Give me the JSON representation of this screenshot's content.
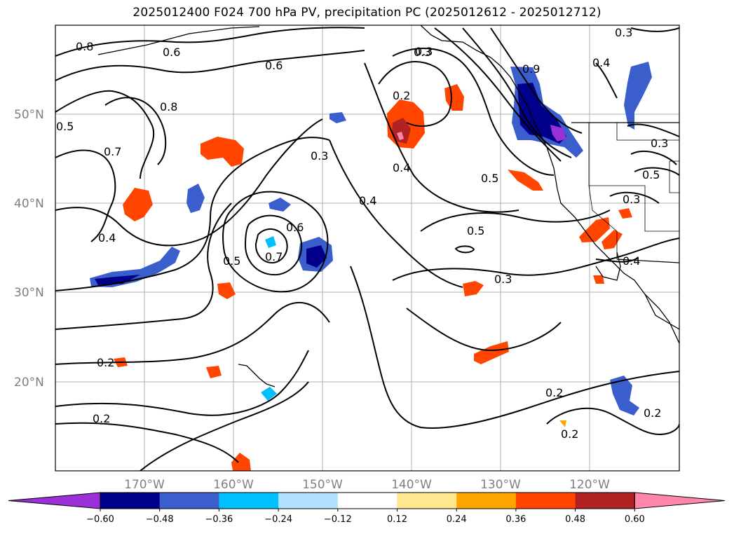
{
  "title": "2025012400 F024 700 hPa PV, precipitation PC (2025012612 - 2025012712)",
  "map": {
    "lon_range": [
      -180,
      -110
    ],
    "lat_range": [
      10,
      60
    ],
    "lon_ticks": [
      "170°W",
      "160°W",
      "150°W",
      "140°W",
      "130°W",
      "120°W"
    ],
    "lat_ticks": [
      "50°N",
      "40°N",
      "30°N",
      "20°N"
    ],
    "grid": true,
    "contour_labels": [
      "0.8",
      "0.6",
      "0.5",
      "0.6",
      "0.8",
      "0.7",
      "0.4",
      "0.3",
      "0.2",
      "0.4",
      "0.4",
      "0.3",
      "0.9",
      "0.3",
      "0.4",
      "0.5",
      "0.3",
      "0.5",
      "0.3",
      "0.4",
      "0.3",
      "0.7",
      "0.6",
      "0.5",
      "0.5",
      "0.3",
      "0.2",
      "0.2",
      "0.2",
      "0.2",
      "0.2"
    ]
  },
  "colorbar": {
    "colors": [
      "#9b30d9",
      "#00008b",
      "#3a5fcd",
      "#00bfff",
      "#b0e2ff",
      "#ffffff",
      "#ffe68f",
      "#ffa500",
      "#ff4500",
      "#b22222",
      "#ff88aa"
    ],
    "tick_labels": [
      "−0.60",
      "−0.48",
      "−0.36",
      "−0.24",
      "−0.12",
      "0.12",
      "0.24",
      "0.36",
      "0.48",
      "0.60"
    ]
  }
}
